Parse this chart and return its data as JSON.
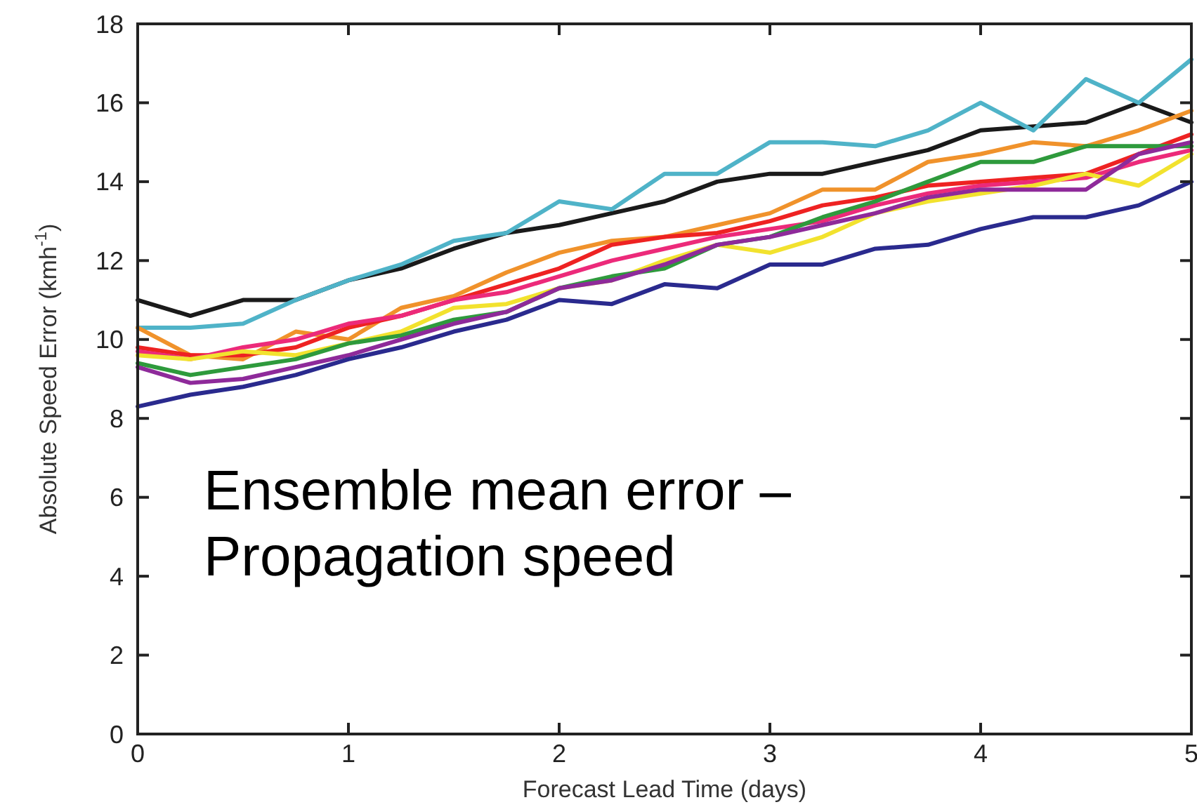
{
  "chart_data": {
    "type": "line",
    "xlabel": "Forecast Lead Time (days)",
    "ylabel": "Absolute Speed Error (kmh$^{-1}$)",
    "annotations": [
      "Ensemble mean error –",
      "Propagation speed"
    ],
    "x": [
      0,
      0.25,
      0.5,
      0.75,
      1,
      1.25,
      1.5,
      1.75,
      2,
      2.25,
      2.5,
      2.75,
      3,
      3.25,
      3.5,
      3.75,
      4,
      4.25,
      4.5,
      4.75,
      5
    ],
    "xlim": [
      0,
      5
    ],
    "xticks": [
      0,
      1,
      2,
      3,
      4,
      5
    ],
    "ylim": [
      0,
      18
    ],
    "yticks": [
      0,
      2,
      4,
      6,
      8,
      10,
      12,
      14,
      16,
      18
    ],
    "grid": false,
    "marker": "none",
    "line_style": "solid",
    "series": [
      {
        "color": "#1a1a1a",
        "values": [
          11.0,
          10.6,
          11.0,
          11.0,
          11.5,
          11.8,
          12.3,
          12.7,
          12.9,
          13.2,
          13.5,
          14.0,
          14.2,
          14.2,
          14.5,
          14.8,
          15.3,
          15.4,
          15.5,
          16.0,
          15.5
        ]
      },
      {
        "color": "#4fb3c8",
        "values": [
          10.3,
          10.3,
          10.4,
          11.0,
          11.5,
          11.9,
          12.5,
          12.7,
          13.5,
          13.3,
          14.2,
          14.2,
          15.0,
          15.0,
          14.9,
          15.3,
          16.0,
          15.3,
          16.6,
          16.0,
          17.1
        ]
      },
      {
        "color": "#f0922b",
        "values": [
          10.3,
          9.6,
          9.5,
          10.2,
          10.0,
          10.8,
          11.1,
          11.7,
          12.2,
          12.5,
          12.6,
          12.9,
          13.2,
          13.8,
          13.8,
          14.5,
          14.7,
          15.0,
          14.9,
          15.3,
          15.8
        ]
      },
      {
        "color": "#ee2222",
        "values": [
          9.8,
          9.6,
          9.6,
          9.8,
          10.3,
          10.6,
          11.0,
          11.4,
          11.8,
          12.4,
          12.6,
          12.7,
          13.0,
          13.4,
          13.6,
          13.9,
          14.0,
          14.1,
          14.2,
          14.7,
          15.2
        ]
      },
      {
        "color": "#ec2a7a",
        "values": [
          9.7,
          9.5,
          9.8,
          10.0,
          10.4,
          10.6,
          11.0,
          11.2,
          11.6,
          12.0,
          12.3,
          12.6,
          12.8,
          13.0,
          13.4,
          13.7,
          13.9,
          14.0,
          14.1,
          14.5,
          14.8
        ]
      },
      {
        "color": "#f2e22e",
        "values": [
          9.6,
          9.5,
          9.7,
          9.6,
          9.9,
          10.2,
          10.8,
          10.9,
          11.3,
          11.5,
          12.0,
          12.4,
          12.2,
          12.6,
          13.2,
          13.5,
          13.7,
          13.9,
          14.2,
          13.9,
          14.7
        ]
      },
      {
        "color": "#2e9a3c",
        "values": [
          9.4,
          9.1,
          9.3,
          9.5,
          9.9,
          10.1,
          10.5,
          10.7,
          11.3,
          11.6,
          11.8,
          12.4,
          12.6,
          13.1,
          13.5,
          14.0,
          14.5,
          14.5,
          14.9,
          14.9,
          14.9
        ]
      },
      {
        "color": "#8e2a9a",
        "values": [
          9.3,
          8.9,
          9.0,
          9.3,
          9.6,
          10.0,
          10.4,
          10.7,
          11.3,
          11.5,
          11.9,
          12.4,
          12.6,
          12.9,
          13.2,
          13.6,
          13.8,
          13.8,
          13.8,
          14.7,
          15.0
        ]
      },
      {
        "color": "#2a2a8e",
        "values": [
          8.3,
          8.6,
          8.8,
          9.1,
          9.5,
          9.8,
          10.2,
          10.5,
          11.0,
          10.9,
          11.4,
          11.3,
          11.9,
          11.9,
          12.3,
          12.4,
          12.8,
          13.1,
          13.1,
          13.4,
          14.0
        ]
      }
    ]
  }
}
